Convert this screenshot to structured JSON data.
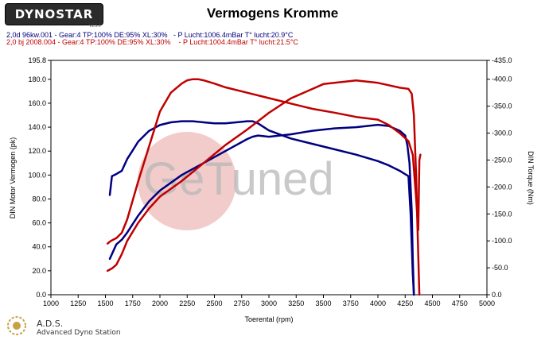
{
  "header": {
    "logo_text": "DYNOSTAR",
    "logo_subtext": "V2.5.1",
    "title": "Vermogens Kromme",
    "runs": [
      "2,0d 96kw.001 - Gear:4 TP:100% DE:95% XL:30%   - P Lucht:1006.4mBar T° lucht:20.9°C",
      "2,0 bj 2008.004 - Gear:4 TP:100% DE:95% XL:30%    - P Lucht:1004.4mBar T° lucht:21.5°C"
    ]
  },
  "watermark": {
    "text": "GeTuned",
    "circle_color": "#e8a0a0"
  },
  "footer": {
    "company": "A.D.S.",
    "subtitle": "Advanced Dyno Station"
  },
  "colors": {
    "run1": "#000080",
    "run2": "#c00000"
  },
  "chart_data": {
    "type": "line",
    "xlabel": "Toerental (rpm)",
    "ylabel": "DIN Motor Vermogen (pk)",
    "y2label": "DIN Torque (Nm)",
    "xlim": [
      1000,
      5000
    ],
    "ylim": [
      0,
      195.8
    ],
    "y2lim": [
      0,
      435
    ],
    "x_ticks": [
      1000,
      1250,
      1500,
      1750,
      2000,
      2250,
      2500,
      2750,
      3000,
      3250,
      3500,
      3750,
      4000,
      4250,
      4500,
      4750,
      5000
    ],
    "y_ticks": [
      0.0,
      20.0,
      40.0,
      60.0,
      80.0,
      100.0,
      120.0,
      140.0,
      160.0,
      180.0,
      195.8
    ],
    "y_tick_labels": [
      "0.0",
      "20.0",
      "40.0",
      "60.0",
      "80.0",
      "100.0",
      "120.0",
      "140.0",
      "160.0",
      "180.0",
      "195.8"
    ],
    "y2_ticks": [
      0,
      50,
      100,
      150,
      200,
      250,
      300,
      350,
      400,
      435
    ],
    "y2_tick_labels": [
      "0.0",
      "-50.0",
      "-100.0",
      "-150.0",
      "-200.0",
      "-250.0",
      "-300.0",
      "-350.0",
      "-400.0",
      "-435.0"
    ],
    "grid": false,
    "series": [
      {
        "name": "2,0d 96kw.001",
        "kind": "torque",
        "axis": "y2",
        "color": "#000080",
        "x": [
          1540,
          1560,
          1600,
          1650,
          1700,
          1750,
          1800,
          1900,
          2000,
          2100,
          2200,
          2300,
          2400,
          2500,
          2600,
          2700,
          2800,
          2850,
          2900,
          3000,
          3200,
          3400,
          3600,
          3800,
          4000,
          4100,
          4200,
          4280,
          4300,
          4320,
          4330
        ],
        "y": [
          185,
          220,
          224,
          230,
          252,
          268,
          284,
          304,
          315,
          320,
          322,
          322,
          320,
          318,
          318,
          320,
          322,
          322,
          318,
          305,
          290,
          280,
          270,
          260,
          248,
          240,
          230,
          220,
          150,
          40,
          0
        ]
      },
      {
        "name": "2,0d 96kw.001",
        "kind": "power",
        "axis": "y",
        "color": "#000080",
        "x": [
          1540,
          1600,
          1650,
          1700,
          1800,
          1900,
          2000,
          2200,
          2400,
          2600,
          2800,
          2850,
          2900,
          3000,
          3200,
          3400,
          3600,
          3800,
          4000,
          4100,
          4200,
          4250,
          4270,
          4290,
          4310,
          4320,
          4330
        ],
        "y": [
          30,
          42,
          46,
          52,
          66,
          78,
          87,
          100,
          110,
          120,
          130,
          132,
          133,
          132,
          134,
          137,
          139,
          140,
          142,
          141,
          137,
          133,
          125,
          110,
          70,
          30,
          0
        ]
      },
      {
        "name": "2,0 bj 2008.004",
        "kind": "torque",
        "axis": "y2",
        "color": "#c00000",
        "x": [
          1520,
          1550,
          1600,
          1650,
          1700,
          1800,
          1900,
          2000,
          2100,
          2200,
          2250,
          2300,
          2350,
          2400,
          2500,
          2600,
          2800,
          3000,
          3200,
          3400,
          3600,
          3800,
          4000,
          4100,
          4200,
          4280,
          4320,
          4350,
          4370,
          4380,
          4390
        ],
        "y": [
          95,
          100,
          105,
          115,
          140,
          210,
          275,
          340,
          375,
          392,
          398,
          400,
          400,
          398,
          392,
          385,
          375,
          365,
          355,
          345,
          338,
          330,
          325,
          315,
          300,
          285,
          260,
          180,
          120,
          250,
          260
        ]
      },
      {
        "name": "2,0 bj 2008.004",
        "kind": "power",
        "axis": "y",
        "color": "#c00000",
        "x": [
          1520,
          1560,
          1600,
          1650,
          1700,
          1800,
          1900,
          2000,
          2200,
          2400,
          2600,
          2800,
          3000,
          3200,
          3400,
          3500,
          3600,
          3700,
          3800,
          3900,
          4000,
          4100,
          4200,
          4280,
          4310,
          4330,
          4350,
          4365,
          4380
        ],
        "y": [
          20,
          22,
          25,
          34,
          45,
          60,
          72,
          82,
          95,
          110,
          125,
          138,
          152,
          164,
          172,
          176,
          177,
          178,
          179,
          178,
          177,
          175,
          173,
          172,
          168,
          150,
          100,
          50,
          0
        ]
      }
    ]
  }
}
